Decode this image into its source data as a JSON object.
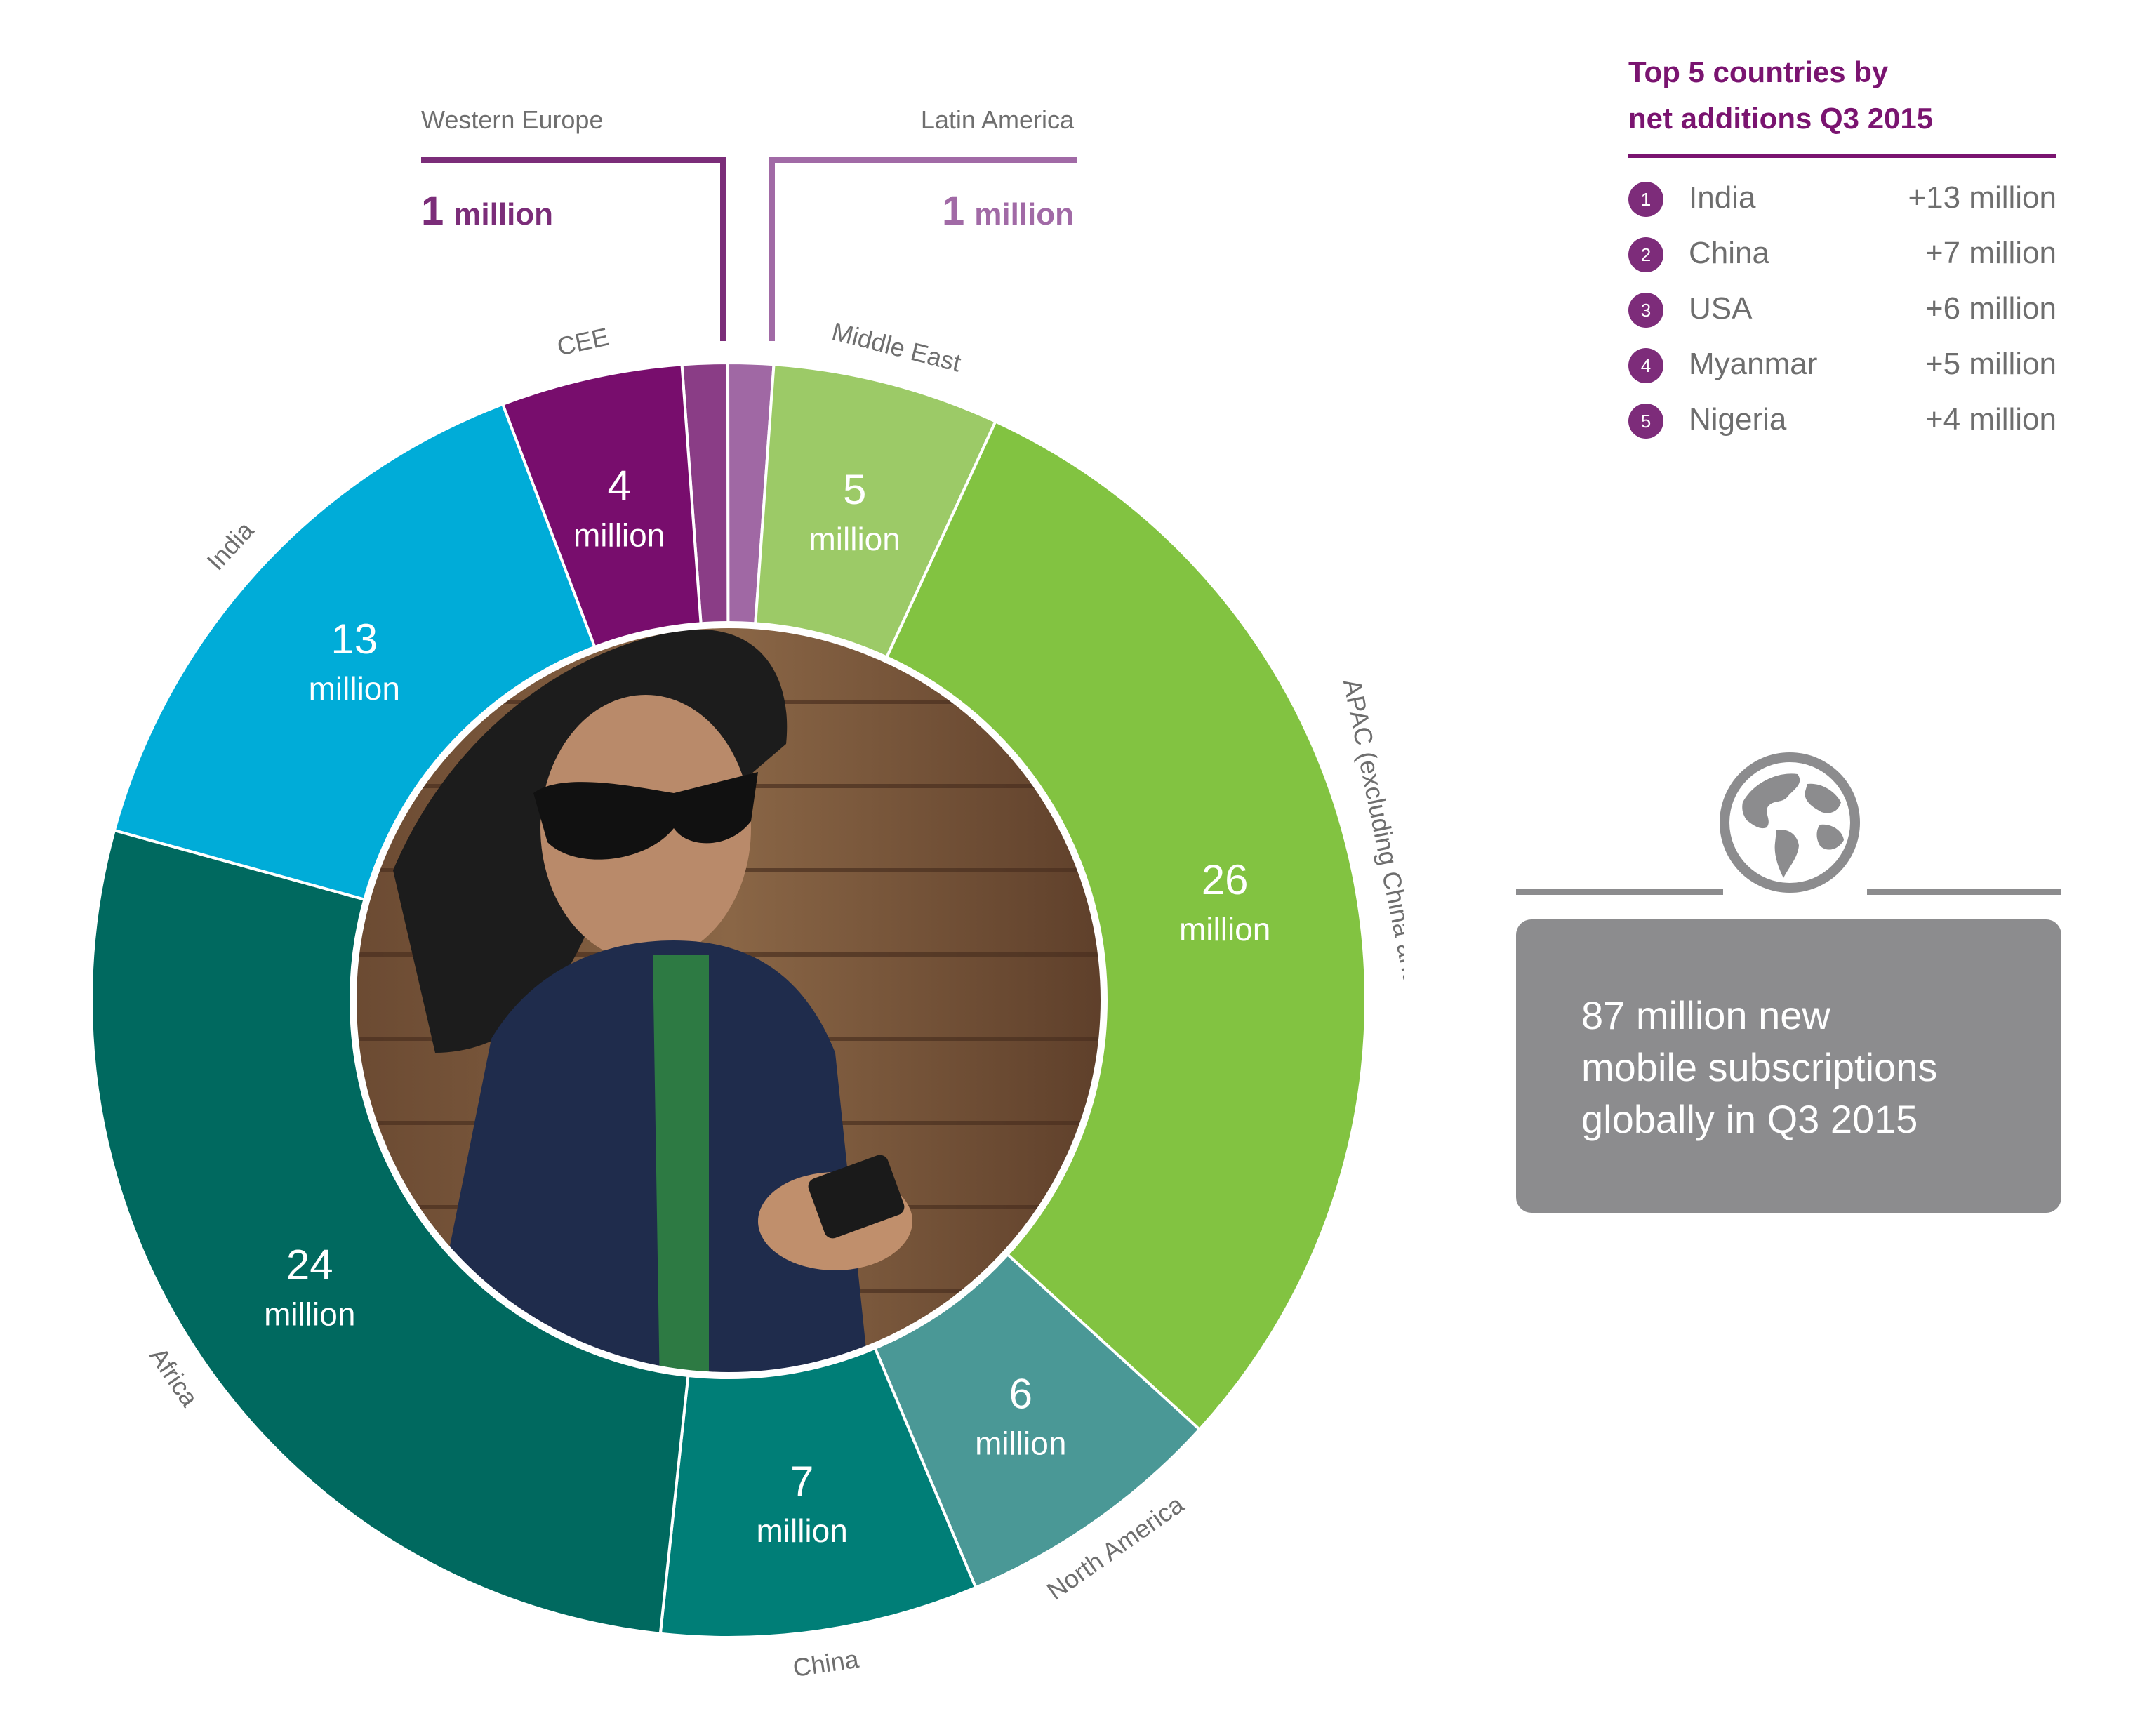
{
  "chart_data": {
    "type": "pie",
    "title": "",
    "unit_label": "million",
    "slices": [
      {
        "label": "Western Europe",
        "value": 1,
        "display": "1",
        "color": "#8a3d86"
      },
      {
        "label": "Latin America",
        "value": 1,
        "display": "1",
        "color": "#a068a4"
      },
      {
        "label": "Middle East",
        "value": 5,
        "display": "5",
        "color": "#9cca67"
      },
      {
        "label": "APAC (excluding China and India)",
        "value": 26,
        "display": "26",
        "color": "#82c341"
      },
      {
        "label": "North America",
        "value": 6,
        "display": "6",
        "color": "#4a9896"
      },
      {
        "label": "China",
        "value": 7,
        "display": "7",
        "color": "#007e77"
      },
      {
        "label": "Africa",
        "value": 24,
        "display": "24",
        "color": "#00695f"
      },
      {
        "label": "India",
        "value": 13,
        "display": "13",
        "color": "#00acd8"
      },
      {
        "label": "CEE",
        "value": 4,
        "display": "4",
        "color": "#780d6d"
      }
    ]
  },
  "callouts": {
    "western_europe": {
      "label": "Western Europe",
      "value": "1",
      "unit": "million"
    },
    "latin_america": {
      "label": "Latin America",
      "value": "1",
      "unit": "million"
    }
  },
  "top5": {
    "title_line1": "Top 5 countries by",
    "title_line2": "net additions Q3 2015",
    "rows": [
      {
        "rank": "1",
        "country": "India",
        "amount": "+13 million"
      },
      {
        "rank": "2",
        "country": "China",
        "amount": "+7 million"
      },
      {
        "rank": "3",
        "country": "USA",
        "amount": "+6 million"
      },
      {
        "rank": "4",
        "country": "Myanmar",
        "amount": "+5 million"
      },
      {
        "rank": "5",
        "country": "Nigeria",
        "amount": "+4 million"
      }
    ]
  },
  "summary": {
    "line1": "87 million new",
    "line2": "mobile subscriptions",
    "line3": "globally in Q3 2015"
  },
  "icons": {
    "globe": "globe-icon",
    "center_photo": "person-with-phone-photo"
  },
  "colors": {
    "accent_purple": "#7a1470",
    "summary_grey": "#8c8c8e",
    "label_grey": "#6e6e6e"
  }
}
